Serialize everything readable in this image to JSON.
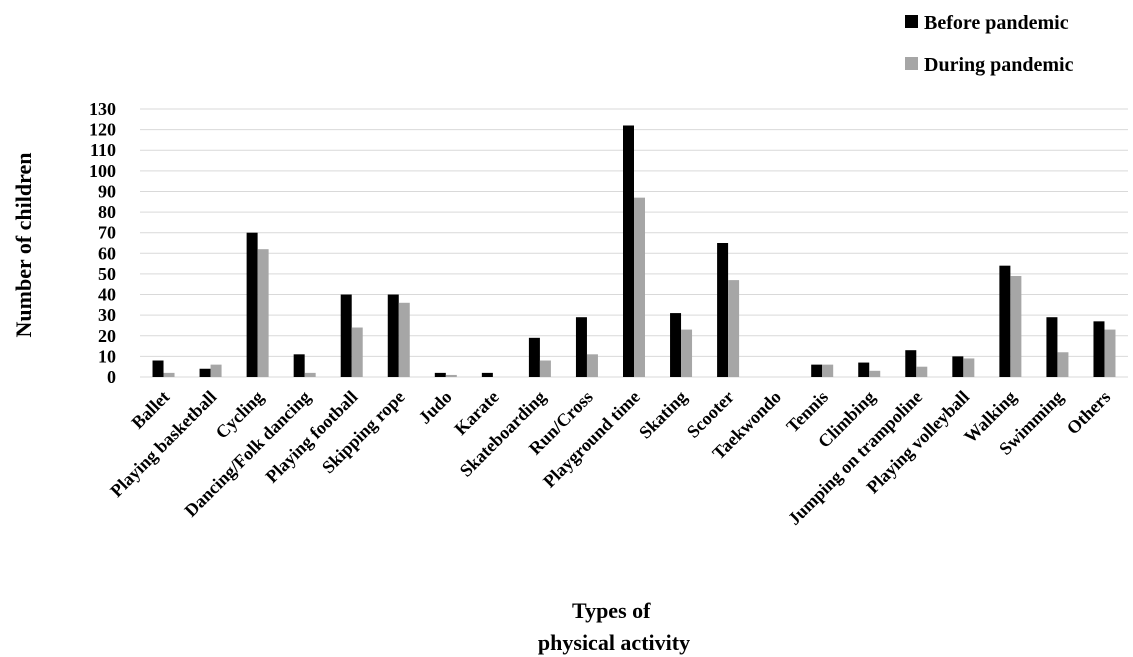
{
  "chart_data": {
    "type": "bar",
    "xlabel": [
      "Types of",
      "physical activity"
    ],
    "ylabel": "Number of children",
    "ylim": [
      0,
      130
    ],
    "yticks": [
      0,
      10,
      20,
      30,
      40,
      50,
      60,
      70,
      80,
      90,
      100,
      110,
      120,
      130
    ],
    "grid": true,
    "legend_position": "top-right",
    "categories": [
      "Ballet",
      "Playing basketball",
      "Cycling",
      "Dancing/Folk dancing",
      "Playing football",
      "Skipping rope",
      "Judo",
      "Karate",
      "Skateboarding",
      "Run/Cross",
      "Playground time",
      "Skating",
      "Scooter",
      "Taekwondo",
      "Tennis",
      "Climbing",
      "Jumping on trampoline",
      "Playing volleyball",
      "Walking",
      "Swimming",
      "Others"
    ],
    "series": [
      {
        "name": "Before pandemic",
        "color": "#000000",
        "values": [
          8,
          4,
          70,
          11,
          40,
          40,
          2,
          2,
          19,
          29,
          122,
          31,
          65,
          0,
          6,
          7,
          13,
          10,
          54,
          29,
          27
        ]
      },
      {
        "name": "During pandemic",
        "color": "#a6a6a6",
        "values": [
          2,
          6,
          62,
          2,
          24,
          36,
          1,
          0,
          8,
          11,
          87,
          23,
          47,
          0,
          6,
          3,
          5,
          9,
          49,
          12,
          23
        ]
      }
    ]
  }
}
